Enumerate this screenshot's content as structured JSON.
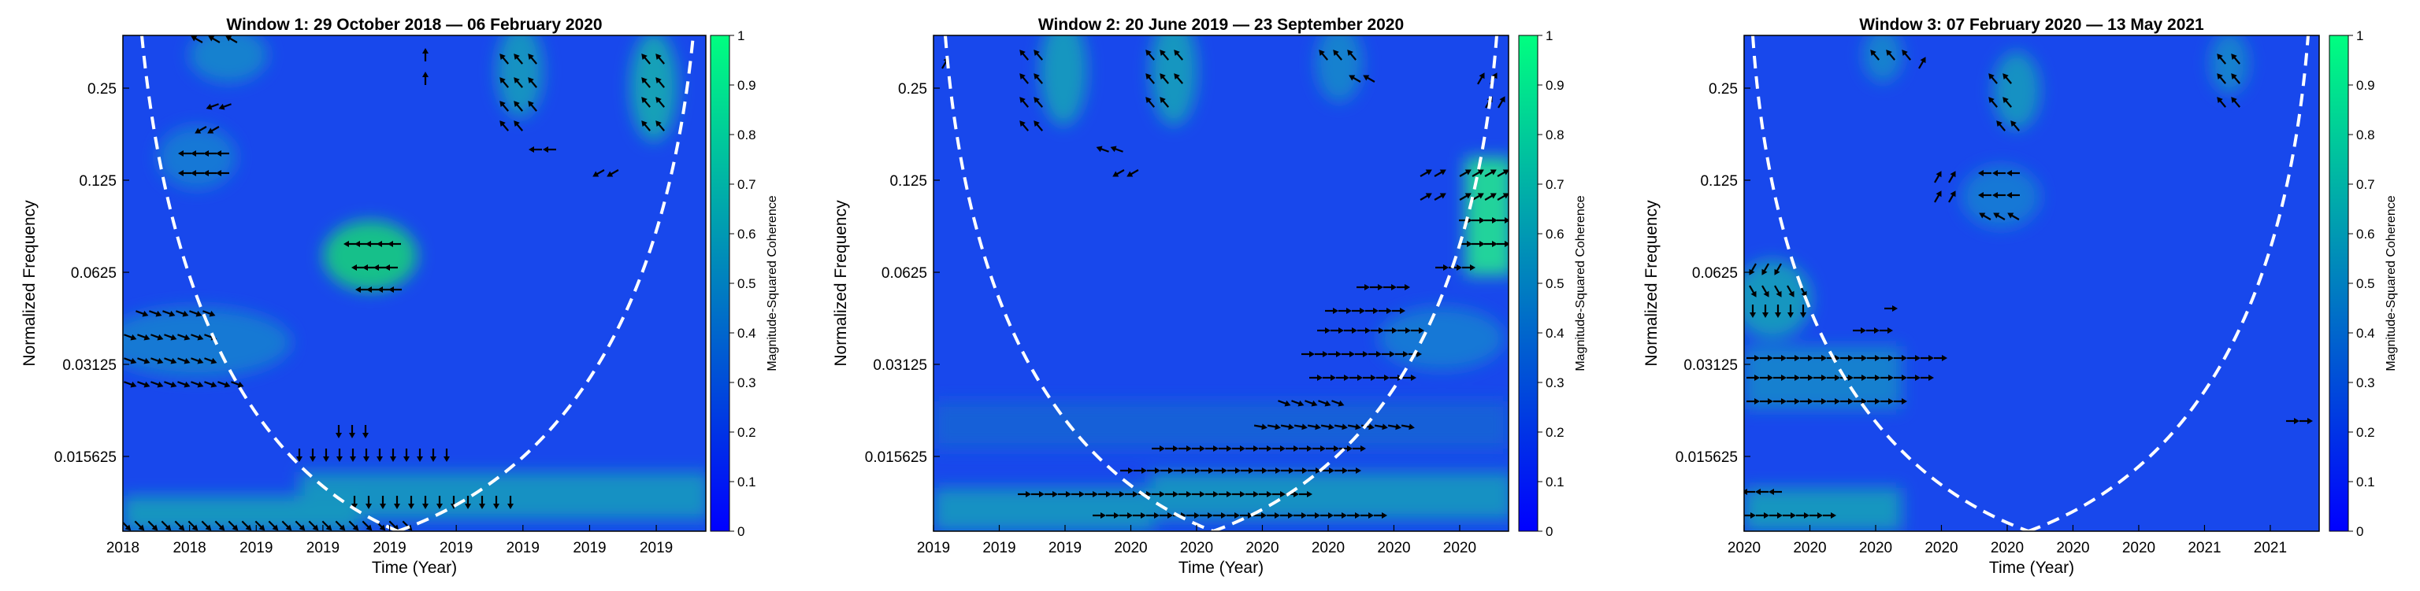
{
  "figure": {
    "colorbar": {
      "label": "Magnitude-Squared Coherence",
      "ticks": [
        "0",
        "0.1",
        "0.2",
        "0.3",
        "0.4",
        "0.5",
        "0.6",
        "0.7",
        "0.8",
        "0.9",
        "1"
      ],
      "colormap": [
        "#0000ff",
        "#00ff80"
      ]
    }
  },
  "chart_data": [
    {
      "type": "heatmap",
      "title": "Window 1: 29 October 2018 — 06 February 2020",
      "xlabel": "Time (Year)",
      "ylabel": "Normalized Frequency",
      "x_ticks": [
        "2018",
        "2018",
        "2019",
        "2019",
        "2019",
        "2019",
        "2019",
        "2019",
        "2019"
      ],
      "y_ticks": [
        "0.25",
        "0.125",
        "0.0625",
        "0.03125",
        "0.015625"
      ],
      "y_scale": "log2",
      "color_range": [
        0,
        1
      ],
      "cone_of_influence": "dashed white",
      "high_coherence_regions": [
        {
          "x_range": [
            0.53,
            0.62
          ],
          "freq_range": [
            0.05,
            0.08
          ],
          "coherence": 0.75
        },
        {
          "x_range": [
            0.0,
            0.3
          ],
          "freq_range": [
            0.022,
            0.04
          ],
          "coherence": 0.6
        },
        {
          "x_range": [
            0.3,
            1.0
          ],
          "freq_range": [
            0.0078,
            0.011
          ],
          "coherence": 0.55
        }
      ]
    },
    {
      "type": "heatmap",
      "title": "Window 2: 20 June 2019 — 23 September 2020",
      "xlabel": "Time (Year)",
      "ylabel": "Normalized Frequency",
      "x_ticks": [
        "2019",
        "2019",
        "2019",
        "2020",
        "2020",
        "2020",
        "2020",
        "2020",
        "2020"
      ],
      "y_ticks": [
        "0.25",
        "0.125",
        "0.0625",
        "0.03125",
        "0.015625"
      ],
      "y_scale": "log2",
      "color_range": [
        0,
        1
      ],
      "cone_of_influence": "dashed white",
      "high_coherence_regions": [
        {
          "x_range": [
            0.9,
            1.0
          ],
          "freq_range": [
            0.06,
            0.14
          ],
          "coherence": 0.8
        },
        {
          "x_range": [
            0.1,
            1.0
          ],
          "freq_range": [
            0.0078,
            0.011
          ],
          "coherence": 0.6
        }
      ]
    },
    {
      "type": "heatmap",
      "title": "Window 3: 07 February 2020 — 13 May 2021",
      "xlabel": "Time (Year)",
      "ylabel": "Normalized Frequency",
      "x_ticks": [
        "2020",
        "2020",
        "2020",
        "2020",
        "2020",
        "2020",
        "2020",
        "2021",
        "2021"
      ],
      "y_ticks": [
        "0.25",
        "0.125",
        "0.0625",
        "0.03125",
        "0.015625"
      ],
      "y_scale": "log2",
      "color_range": [
        0,
        1
      ],
      "cone_of_influence": "dashed white",
      "high_coherence_regions": [
        {
          "x_range": [
            0.0,
            0.12
          ],
          "freq_range": [
            0.04,
            0.07
          ],
          "coherence": 0.6
        },
        {
          "x_range": [
            0.0,
            0.25
          ],
          "freq_range": [
            0.018,
            0.032
          ],
          "coherence": 0.55
        },
        {
          "x_range": [
            0.0,
            0.3
          ],
          "freq_range": [
            0.0078,
            0.01
          ],
          "coherence": 0.5
        }
      ]
    }
  ]
}
